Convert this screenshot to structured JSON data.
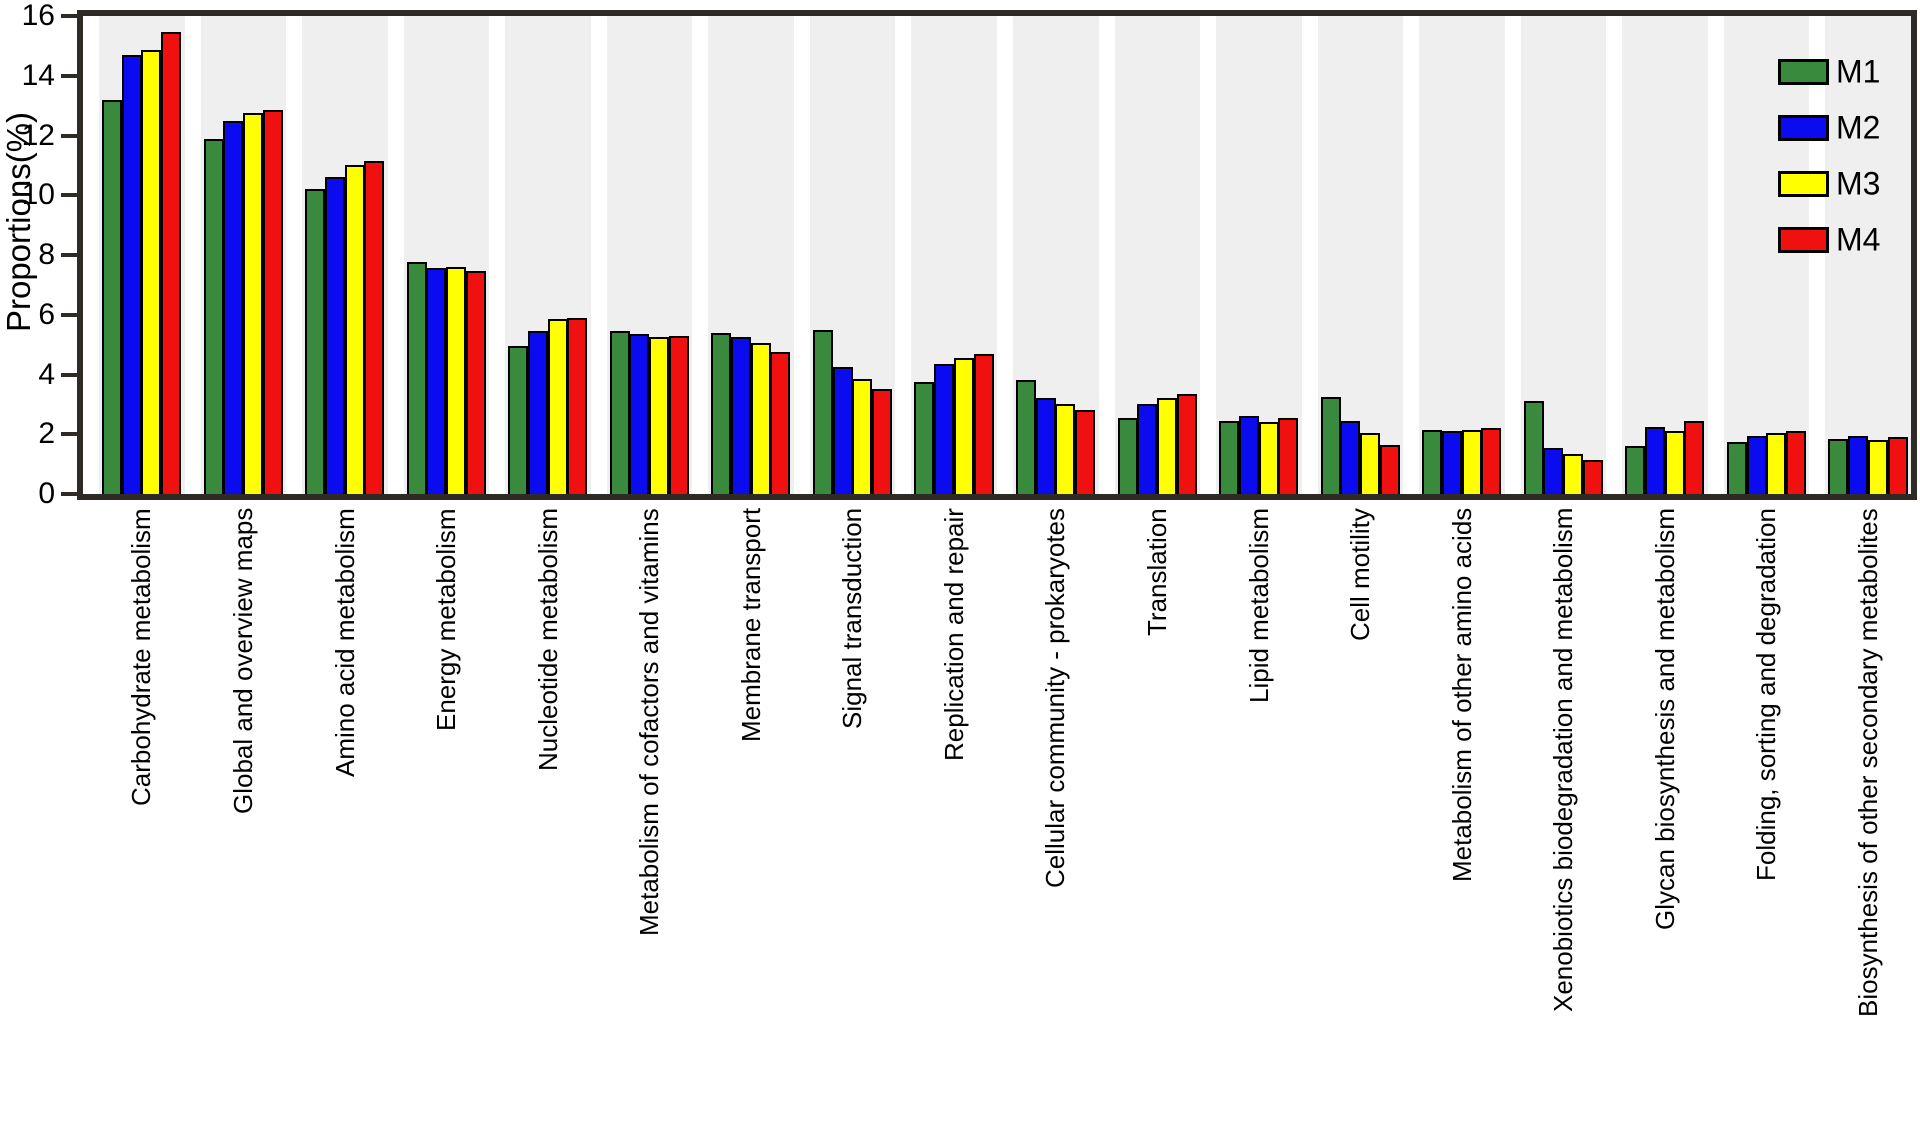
{
  "chart_data": {
    "type": "bar",
    "title": "",
    "ylabel": "Proportions(%)",
    "xlabel": "",
    "ylim": [
      0,
      16
    ],
    "yticks": [
      0,
      2,
      4,
      6,
      8,
      10,
      12,
      14,
      16
    ],
    "grid": false,
    "legend_position": "top-right-inside",
    "plot_band_color": "#EFEFEF",
    "frame_color": "#2E2A26",
    "bar_outline_color": "#000000",
    "categories": [
      "Carbohydrate metabolism",
      "Global and overview maps",
      "Amino acid metabolism",
      "Energy metabolism",
      "Nucleotide metabolism",
      "Metabolism of cofactors and vitamins",
      "Membrane transport",
      "Signal transduction",
      "Replication and repair",
      "Cellular community - prokaryotes",
      "Translation",
      "Lipid metabolism",
      "Cell motility",
      "Metabolism of other amino acids",
      "Xenobiotics biodegradation and metabolism",
      "Glycan biosynthesis and metabolism",
      "Folding, sorting and degradation",
      "Biosynthesis of other secondary metabolites"
    ],
    "series": [
      {
        "name": "M1",
        "color": "#3A8A3E",
        "values": [
          13.2,
          11.9,
          10.2,
          7.75,
          4.95,
          5.45,
          5.4,
          5.5,
          3.75,
          3.8,
          2.55,
          2.45,
          3.25,
          2.15,
          3.1,
          1.6,
          1.75,
          1.85
        ]
      },
      {
        "name": "M2",
        "color": "#0B0BF0",
        "values": [
          14.7,
          12.5,
          10.6,
          7.55,
          5.45,
          5.35,
          5.25,
          4.25,
          4.35,
          3.2,
          3.0,
          2.6,
          2.45,
          2.1,
          1.55,
          2.25,
          1.95,
          1.95
        ]
      },
      {
        "name": "M3",
        "color": "#FFFF00",
        "values": [
          14.85,
          12.75,
          11.0,
          7.6,
          5.85,
          5.25,
          5.05,
          3.85,
          4.55,
          3.0,
          3.2,
          2.4,
          2.05,
          2.15,
          1.35,
          2.1,
          2.05,
          1.8
        ]
      },
      {
        "name": "M4",
        "color": "#F01010",
        "values": [
          15.45,
          12.85,
          11.15,
          7.45,
          5.9,
          5.3,
          4.75,
          3.5,
          4.7,
          2.8,
          3.35,
          2.55,
          1.65,
          2.2,
          1.15,
          2.45,
          2.1,
          1.9
        ]
      }
    ]
  }
}
